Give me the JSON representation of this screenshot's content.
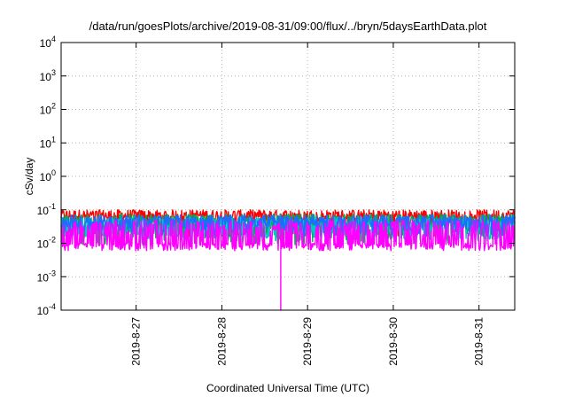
{
  "chart_data": {
    "type": "line",
    "title": "/data/run/goesPlots/archive/2019-08-31/09:00/flux/../bryn/5daysEarthData.plot",
    "xlabel": "Coordinated Universal Time (UTC)",
    "ylabel": "cSv/day",
    "yscale": "log",
    "ylim": [
      0.0001,
      10000
    ],
    "xlim": [
      "2019-08-26 03:00",
      "2019-08-31 10:00"
    ],
    "grid": true,
    "y_ticks": [
      {
        "base": "10",
        "exp": "-4"
      },
      {
        "base": "10",
        "exp": "-3"
      },
      {
        "base": "10",
        "exp": "-2"
      },
      {
        "base": "10",
        "exp": "-1"
      },
      {
        "base": "10",
        "exp": "0"
      },
      {
        "base": "10",
        "exp": "1"
      },
      {
        "base": "10",
        "exp": "2"
      },
      {
        "base": "10",
        "exp": "3"
      },
      {
        "base": "10",
        "exp": "4"
      }
    ],
    "x_ticks": [
      {
        "label": "2019-8-27",
        "date": "2019-08-27 00:00"
      },
      {
        "label": "2019-8-28",
        "date": "2019-08-28 00:00"
      },
      {
        "label": "2019-8-29",
        "date": "2019-08-29 00:00"
      },
      {
        "label": "2019-8-30",
        "date": "2019-08-30 00:00"
      },
      {
        "label": "2019-8-31",
        "date": "2019-08-31 00:00"
      }
    ],
    "series": [
      {
        "color": "#ff0000",
        "peak_low": 0.038,
        "peak_high": 0.1,
        "dip_low": 0.015,
        "dip_high": 0.035,
        "dip_rate": 0.12
      },
      {
        "color": "#00b050",
        "peak_low": 0.03,
        "peak_high": 0.075,
        "dip_low": 0.009,
        "dip_high": 0.02,
        "dip_rate": 0.32
      },
      {
        "color": "#00c8c8",
        "peak_low": 0.028,
        "peak_high": 0.06,
        "dip_low": 0.012,
        "dip_high": 0.022,
        "dip_rate": 0.3
      },
      {
        "color": "#1e6cff",
        "peak_low": 0.03,
        "peak_high": 0.07,
        "dip_low": 0.016,
        "dip_high": 0.03,
        "dip_rate": 0.28
      },
      {
        "color": "#ff00ff",
        "peak_low": 0.006,
        "peak_high": 0.01,
        "dip_low": 0.005,
        "dip_high": 0.007,
        "dip_rate": 0.0,
        "spike_low": 0.015,
        "spike_high": 0.05,
        "spike_rate": 0.45,
        "dropout": {
          "date": "2019-08-28 16:30",
          "value": 0.0001
        }
      }
    ]
  }
}
